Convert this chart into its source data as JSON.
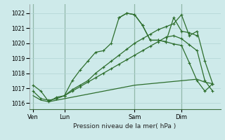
{
  "bg_color": "#ceeaea",
  "grid_color": "#b0d4d4",
  "line_color": "#2d6e2d",
  "marker_color": "#2d6e2d",
  "xlabel": "Pression niveau de la mer( hPa )",
  "ylabel_ticks": [
    1016,
    1017,
    1018,
    1019,
    1020,
    1021,
    1022
  ],
  "ylim": [
    1015.6,
    1022.6
  ],
  "day_labels": [
    "Ven",
    "Lun",
    "Sam",
    "Dim"
  ],
  "day_positions": [
    0,
    4,
    13,
    19
  ],
  "xlim": [
    -0.5,
    24
  ],
  "series1": {
    "x": [
      0,
      1,
      2,
      3,
      4,
      5,
      6,
      7,
      8,
      9,
      10,
      11,
      12,
      13,
      14,
      15,
      16,
      17,
      18,
      19,
      20,
      21
    ],
    "y": [
      1017.2,
      1016.8,
      1016.1,
      1016.4,
      1016.5,
      1017.5,
      1018.2,
      1018.8,
      1019.4,
      1019.5,
      1020.0,
      1021.7,
      1022.0,
      1021.9,
      1021.2,
      1020.2,
      1020.2,
      1020.1,
      1021.7,
      1020.8,
      1020.7,
      1020.5
    ]
  },
  "series1b": {
    "x": [
      11,
      12,
      13,
      14,
      15,
      16,
      17,
      18,
      19,
      20,
      21,
      22,
      23
    ],
    "y": [
      1021.7,
      1022.0,
      1021.9,
      1021.2,
      1020.2,
      1020.2,
      1020.1,
      1019.95,
      1019.85,
      1018.7,
      1017.5,
      1016.8,
      1017.3
    ]
  },
  "series2": {
    "x": [
      0,
      1,
      2,
      3,
      4,
      5,
      6,
      7,
      8,
      9,
      10,
      11,
      12,
      13,
      14,
      15,
      16,
      17,
      18,
      19,
      20,
      21,
      22,
      23
    ],
    "y": [
      1016.8,
      1016.3,
      1016.2,
      1016.3,
      1016.5,
      1016.9,
      1017.2,
      1017.5,
      1018.0,
      1018.4,
      1018.8,
      1019.2,
      1019.6,
      1020.0,
      1020.3,
      1020.6,
      1020.9,
      1021.1,
      1021.3,
      1021.9,
      1020.5,
      1020.8,
      1018.8,
      1017.3
    ]
  },
  "series3": {
    "x": [
      4,
      5,
      6,
      7,
      8,
      9,
      10,
      11,
      12,
      13,
      14,
      15,
      16,
      17,
      18,
      19,
      20,
      21,
      22,
      23
    ],
    "y": [
      1016.5,
      1016.8,
      1017.1,
      1017.4,
      1017.7,
      1018.0,
      1018.3,
      1018.6,
      1018.9,
      1019.2,
      1019.5,
      1019.8,
      1020.1,
      1020.4,
      1020.5,
      1020.3,
      1019.9,
      1019.5,
      1017.5,
      1016.8
    ]
  },
  "series4": {
    "x": [
      0,
      1,
      2,
      3,
      4,
      5,
      6,
      7,
      8,
      9,
      10,
      11,
      12,
      13,
      14,
      15,
      16,
      17,
      18,
      19,
      20,
      21,
      22,
      23
    ],
    "y": [
      1016.5,
      1016.2,
      1016.1,
      1016.2,
      1016.3,
      1016.4,
      1016.5,
      1016.6,
      1016.7,
      1016.8,
      1016.9,
      1017.0,
      1017.1,
      1017.2,
      1017.25,
      1017.3,
      1017.35,
      1017.4,
      1017.45,
      1017.5,
      1017.55,
      1017.6,
      1017.4,
      1017.3
    ]
  }
}
